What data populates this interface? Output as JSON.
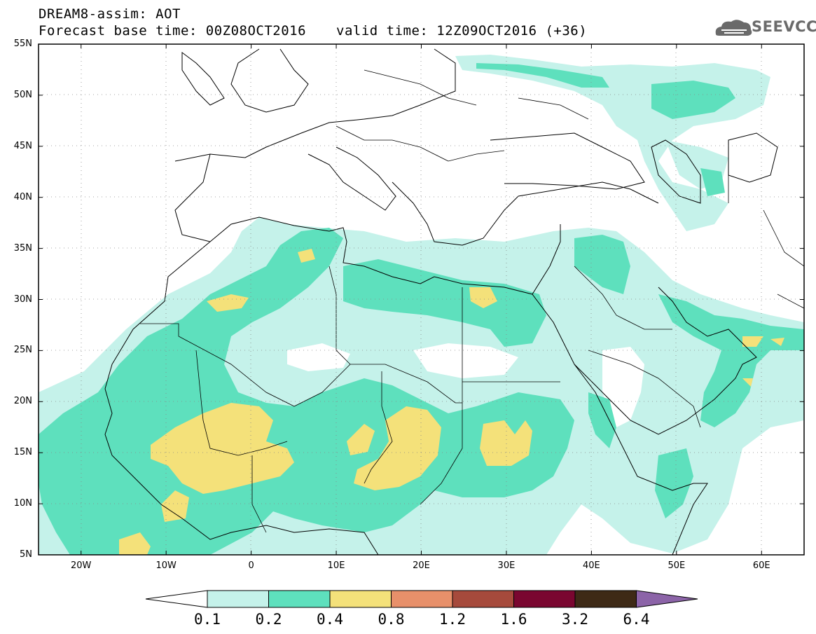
{
  "header": {
    "model_line": "DREAM8-assim: AOT",
    "base_line": "Forecast base time: 00Z08OCT2016",
    "valid_line": "valid time: 12Z09OCT2016 (+36)"
  },
  "logo": {
    "text": "SEEVCCC",
    "icon": "cloud-logo-icon"
  },
  "map": {
    "lat_labels": [
      "55N",
      "50N",
      "45N",
      "40N",
      "35N",
      "30N",
      "25N",
      "20N",
      "15N",
      "10N",
      "5N"
    ],
    "lon_labels": [
      "20W",
      "10W",
      "0",
      "10E",
      "20E",
      "30E",
      "40E",
      "50E",
      "60E"
    ],
    "lat_range": [
      5,
      55
    ],
    "lon_range": [
      -25,
      65
    ]
  },
  "colorbar": {
    "labels": [
      "0.1",
      "0.2",
      "0.4",
      "0.8",
      "1.2",
      "1.6",
      "3.2",
      "6.4"
    ],
    "colors": [
      "#c5f2ea",
      "#5ee0bd",
      "#f4e17a",
      "#e8906a",
      "#a64a3c",
      "#7a0630",
      "#3e2a16",
      "#8c64a8"
    ],
    "under_color": "#ffffff"
  }
}
